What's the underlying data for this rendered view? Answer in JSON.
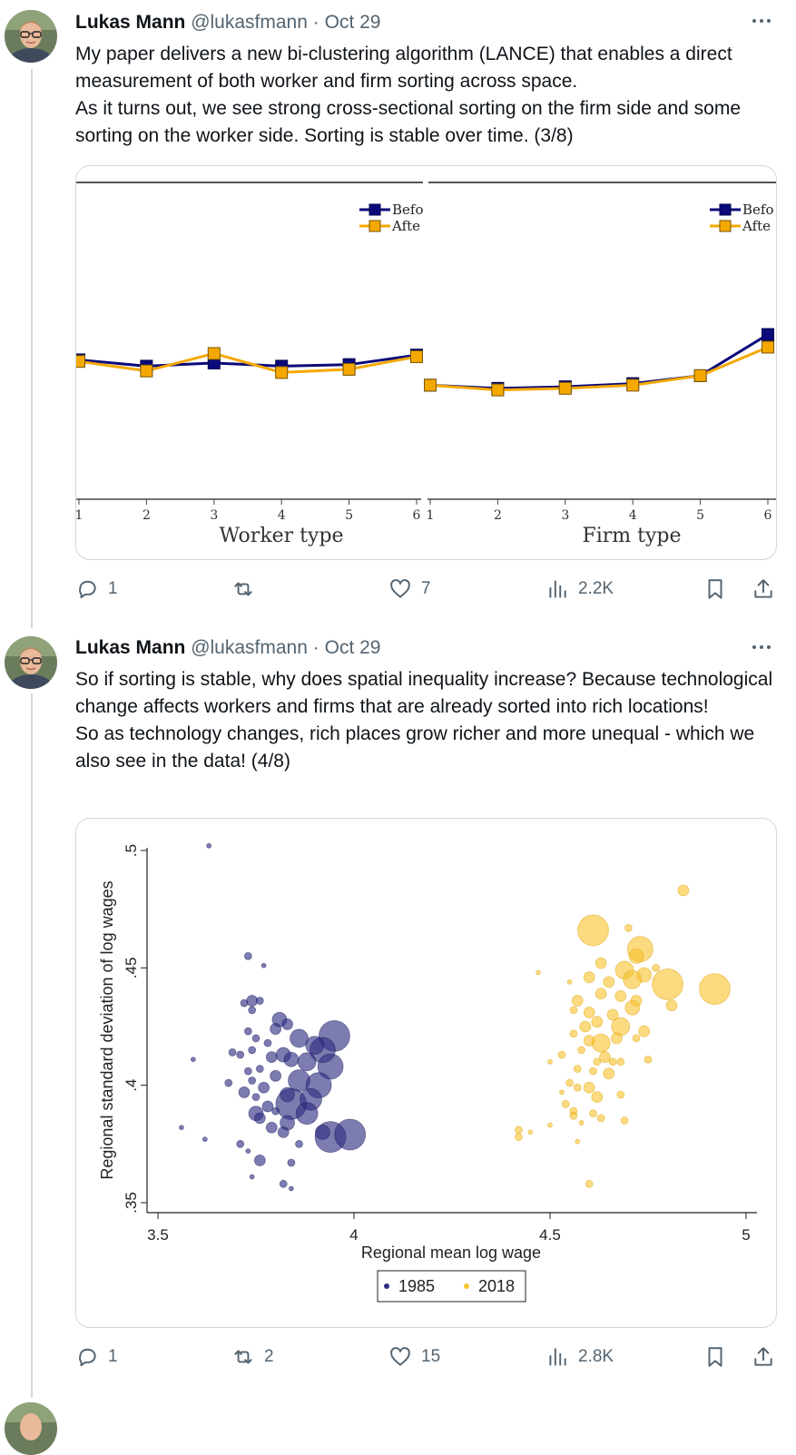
{
  "tweets": [
    {
      "author": "Lukas Mann",
      "handle": "@lukasfmann",
      "separator": "·",
      "date": "Oct 29",
      "paragraphs": [
        "My paper delivers a new bi-clustering algorithm (LANCE) that enables a direct measurement of both worker and firm sorting across space.",
        "As it turns out, we see strong cross-sectional sorting on the firm side and some sorting on the worker side. Sorting is stable over time. (3/8)"
      ],
      "replies": "1",
      "retweets": "",
      "likes": "7",
      "views": "2.2K"
    },
    {
      "author": "Lukas Mann",
      "handle": "@lukasfmann",
      "separator": "·",
      "date": "Oct 29",
      "paragraphs": [
        "So if sorting is stable, why does spatial inequality increase? Because technological change affects workers and firms that are already sorted into rich locations!",
        "So as technology changes, rich places grow richer and more unequal - which we also see in the data! (4/8)"
      ],
      "replies": "1",
      "retweets": "2",
      "likes": "15",
      "views": "2.8K"
    }
  ],
  "icons": {
    "more": "more-horizontal-icon",
    "reply": "reply-icon",
    "retweet": "retweet-icon",
    "like": "heart-icon",
    "views": "views-icon",
    "bookmark": "bookmark-icon",
    "share": "share-icon"
  },
  "colors": {
    "text": "#0f1419",
    "muted": "#536471",
    "border": "#cfd9de",
    "series_before": "#0a0a7a",
    "series_after": "#f5a800",
    "dots_1985": "#2d2b7f",
    "dots_2018": "#f8c22b"
  },
  "chart_data": [
    {
      "type": "line",
      "panel": "left",
      "xlabel": "Worker type",
      "x": [
        1,
        2,
        3,
        4,
        5,
        6
      ],
      "x_tick_labels": [
        "1",
        "2",
        "3",
        "4",
        "5",
        "6"
      ],
      "legend": [
        "Befo",
        "Afte"
      ],
      "legend_position": "top-right",
      "series": [
        {
          "name": "Befo",
          "values": [
            0.56,
            0.58,
            0.57,
            0.58,
            0.575,
            0.545
          ]
        },
        {
          "name": "Afte",
          "values": [
            0.565,
            0.595,
            0.54,
            0.6,
            0.59,
            0.55
          ]
        }
      ]
    },
    {
      "type": "line",
      "panel": "right",
      "xlabel": "Firm type",
      "x": [
        1,
        2,
        3,
        4,
        5,
        6
      ],
      "x_tick_labels": [
        "1",
        "2",
        "3",
        "4",
        "5",
        "6"
      ],
      "legend": [
        "Befo",
        "Afte"
      ],
      "legend_position": "top-right",
      "series": [
        {
          "name": "Befo",
          "values": [
            0.64,
            0.65,
            0.645,
            0.635,
            0.61,
            0.48
          ]
        },
        {
          "name": "Afte",
          "values": [
            0.64,
            0.655,
            0.65,
            0.64,
            0.61,
            0.52
          ]
        }
      ]
    },
    {
      "type": "scatter",
      "xlabel": "Regional mean log wage",
      "ylabel": "Regional standard deviation of log wages",
      "xlim": [
        3.5,
        5
      ],
      "ylim": [
        0.35,
        0.5
      ],
      "x_ticks": [
        "3.5",
        "4",
        "4.5",
        "5"
      ],
      "y_ticks": [
        ".35",
        ".4",
        ".45",
        ".5"
      ],
      "legend": [
        "1985",
        "2018"
      ],
      "legend_position": "bottom-center",
      "series": [
        {
          "name": "1985",
          "points": [
            [
              3.63,
              0.502,
              1
            ],
            [
              3.59,
              0.411,
              1
            ],
            [
              3.56,
              0.382,
              1
            ],
            [
              3.62,
              0.377,
              1
            ],
            [
              3.73,
              0.455,
              2
            ],
            [
              3.77,
              0.451,
              1
            ],
            [
              3.74,
              0.436,
              3
            ],
            [
              3.72,
              0.435,
              2
            ],
            [
              3.76,
              0.436,
              2
            ],
            [
              3.74,
              0.432,
              2
            ],
            [
              3.81,
              0.428,
              4
            ],
            [
              3.83,
              0.426,
              3
            ],
            [
              3.8,
              0.424,
              3
            ],
            [
              3.73,
              0.423,
              2
            ],
            [
              3.75,
              0.42,
              2
            ],
            [
              3.86,
              0.42,
              5
            ],
            [
              3.95,
              0.421,
              8
            ],
            [
              3.92,
              0.415,
              7
            ],
            [
              3.9,
              0.417,
              5
            ],
            [
              3.78,
              0.418,
              2
            ],
            [
              3.82,
              0.413,
              4
            ],
            [
              3.74,
              0.415,
              2
            ],
            [
              3.69,
              0.414,
              2
            ],
            [
              3.71,
              0.413,
              2
            ],
            [
              3.79,
              0.412,
              3
            ],
            [
              3.84,
              0.411,
              4
            ],
            [
              3.88,
              0.41,
              5
            ],
            [
              3.94,
              0.408,
              7
            ],
            [
              3.76,
              0.407,
              2
            ],
            [
              3.73,
              0.406,
              2
            ],
            [
              3.8,
              0.404,
              3
            ],
            [
              3.86,
              0.402,
              6
            ],
            [
              3.91,
              0.4,
              7
            ],
            [
              3.74,
              0.402,
              2
            ],
            [
              3.77,
              0.399,
              3
            ],
            [
              3.72,
              0.397,
              3
            ],
            [
              3.75,
              0.395,
              2
            ],
            [
              3.83,
              0.396,
              4
            ],
            [
              3.84,
              0.392,
              8
            ],
            [
              3.89,
              0.394,
              6
            ],
            [
              3.78,
              0.391,
              3
            ],
            [
              3.8,
              0.389,
              2
            ],
            [
              3.88,
              0.388,
              6
            ],
            [
              3.76,
              0.386,
              3
            ],
            [
              3.83,
              0.384,
              4
            ],
            [
              3.75,
              0.388,
              4
            ],
            [
              3.79,
              0.382,
              3
            ],
            [
              3.82,
              0.38,
              3
            ],
            [
              3.94,
              0.378,
              8
            ],
            [
              3.92,
              0.38,
              4
            ],
            [
              3.99,
              0.379,
              8
            ],
            [
              3.71,
              0.375,
              2
            ],
            [
              3.73,
              0.372,
              1
            ],
            [
              3.76,
              0.368,
              3
            ],
            [
              3.84,
              0.367,
              2
            ],
            [
              3.74,
              0.361,
              1
            ],
            [
              3.82,
              0.358,
              2
            ],
            [
              3.84,
              0.356,
              1
            ],
            [
              3.86,
              0.375,
              2
            ],
            [
              3.68,
              0.401,
              2
            ]
          ]
        },
        {
          "name": "2018",
          "points": [
            [
              4.84,
              0.483,
              3
            ],
            [
              4.61,
              0.466,
              8
            ],
            [
              4.7,
              0.467,
              2
            ],
            [
              4.73,
              0.458,
              7
            ],
            [
              4.72,
              0.455,
              4
            ],
            [
              4.63,
              0.452,
              3
            ],
            [
              4.69,
              0.449,
              5
            ],
            [
              4.74,
              0.447,
              4
            ],
            [
              4.77,
              0.45,
              2
            ],
            [
              4.47,
              0.448,
              1
            ],
            [
              4.6,
              0.446,
              3
            ],
            [
              4.65,
              0.444,
              3
            ],
            [
              4.71,
              0.445,
              5
            ],
            [
              4.8,
              0.443,
              8
            ],
            [
              4.92,
              0.441,
              8
            ],
            [
              4.55,
              0.444,
              1
            ],
            [
              4.57,
              0.436,
              3
            ],
            [
              4.63,
              0.439,
              3
            ],
            [
              4.68,
              0.438,
              3
            ],
            [
              4.72,
              0.436,
              3
            ],
            [
              4.81,
              0.434,
              3
            ],
            [
              4.56,
              0.432,
              2
            ],
            [
              4.6,
              0.431,
              3
            ],
            [
              4.66,
              0.43,
              3
            ],
            [
              4.71,
              0.433,
              4
            ],
            [
              4.59,
              0.425,
              3
            ],
            [
              4.62,
              0.427,
              3
            ],
            [
              4.68,
              0.425,
              5
            ],
            [
              4.74,
              0.423,
              3
            ],
            [
              4.56,
              0.422,
              2
            ],
            [
              4.6,
              0.419,
              3
            ],
            [
              4.63,
              0.418,
              5
            ],
            [
              4.67,
              0.42,
              3
            ],
            [
              4.72,
              0.42,
              2
            ],
            [
              4.58,
              0.415,
              2
            ],
            [
              4.64,
              0.412,
              3
            ],
            [
              4.53,
              0.413,
              2
            ],
            [
              4.5,
              0.41,
              1
            ],
            [
              4.62,
              0.41,
              2
            ],
            [
              4.66,
              0.41,
              2
            ],
            [
              4.68,
              0.41,
              2
            ],
            [
              4.75,
              0.411,
              2
            ],
            [
              4.57,
              0.407,
              2
            ],
            [
              4.61,
              0.406,
              2
            ],
            [
              4.65,
              0.405,
              3
            ],
            [
              4.55,
              0.401,
              2
            ],
            [
              4.57,
              0.399,
              2
            ],
            [
              4.6,
              0.399,
              3
            ],
            [
              4.62,
              0.395,
              3
            ],
            [
              4.53,
              0.397,
              1
            ],
            [
              4.54,
              0.392,
              2
            ],
            [
              4.56,
              0.389,
              2
            ],
            [
              4.61,
              0.388,
              2
            ],
            [
              4.63,
              0.386,
              2
            ],
            [
              4.58,
              0.384,
              1
            ],
            [
              4.68,
              0.396,
              2
            ],
            [
              4.69,
              0.385,
              2
            ],
            [
              4.56,
              0.387,
              2
            ],
            [
              4.42,
              0.381,
              2
            ],
            [
              4.42,
              0.378,
              2
            ],
            [
              4.5,
              0.383,
              1
            ],
            [
              4.45,
              0.38,
              1
            ],
            [
              4.57,
              0.376,
              1
            ],
            [
              4.6,
              0.358,
              2
            ]
          ]
        }
      ]
    }
  ]
}
